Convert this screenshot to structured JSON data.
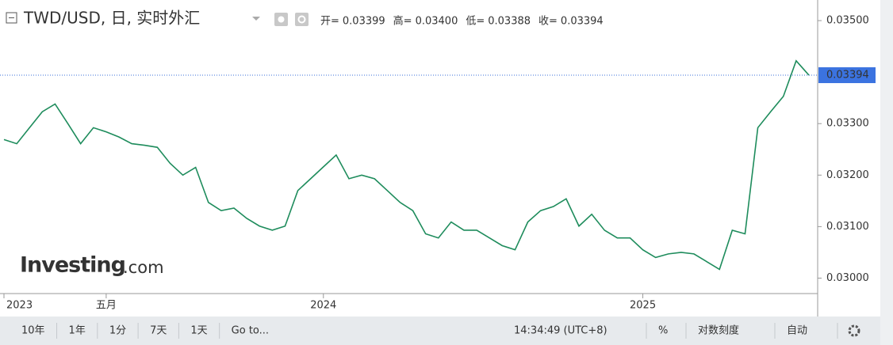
{
  "chart_data": {
    "type": "line",
    "title": "TWD/USD, 日, 实时外汇",
    "ohlc": [
      {
        "label": "开=",
        "value": "0.03399"
      },
      {
        "label": "高=",
        "value": "0.03400"
      },
      {
        "label": "低=",
        "value": "0.03388"
      },
      {
        "label": "收=",
        "value": "0.03394"
      }
    ],
    "logo": "Investing",
    "logo_suffix": ".com",
    "categories": [
      "2023",
      null,
      null,
      null,
      null,
      null,
      null,
      null,
      "五月",
      null,
      null,
      null,
      null,
      null,
      null,
      null,
      null,
      null,
      null,
      null,
      null,
      null,
      null,
      null,
      null,
      "2024",
      null,
      null,
      null,
      null,
      null,
      null,
      null,
      null,
      null,
      null,
      null,
      null,
      null,
      null,
      null,
      null,
      null,
      null,
      null,
      null,
      null,
      null,
      null,
      null,
      "2025",
      null,
      null,
      null,
      null,
      null,
      null,
      null,
      null,
      null,
      null,
      null,
      null,
      null
    ],
    "series": [
      {
        "name": "TWD/USD",
        "color": "#1e8c5c",
        "values": [
          0.03269,
          0.03261,
          0.03292,
          0.03323,
          0.03338,
          0.033,
          0.03261,
          0.03292,
          0.03284,
          0.03274,
          0.03261,
          0.03258,
          0.03254,
          0.03223,
          0.032,
          0.03215,
          0.03147,
          0.03131,
          0.03136,
          0.03116,
          0.03101,
          0.03093,
          0.03101,
          0.0317,
          0.03193,
          0.03216,
          0.03239,
          0.03193,
          0.032,
          0.03193,
          0.0317,
          0.03147,
          0.03131,
          0.03086,
          0.03078,
          0.03109,
          0.03093,
          0.03093,
          0.03078,
          0.03063,
          0.03055,
          0.03109,
          0.03131,
          0.03139,
          0.03154,
          0.03101,
          0.03124,
          0.03093,
          0.03078,
          0.03078,
          0.03055,
          0.0304,
          0.03047,
          0.0305,
          0.03047,
          0.03032,
          0.03017,
          0.03093,
          0.03086,
          0.03292,
          0.03323,
          0.03353,
          0.03422,
          0.03394
        ]
      }
    ],
    "last_price": 0.03394,
    "ylim": [
      0.0297,
      0.0354
    ],
    "yticks": [
      {
        "value": 0.03,
        "label": "0.03000"
      },
      {
        "value": 0.031,
        "label": "0.03100"
      },
      {
        "value": 0.032,
        "label": "0.03200"
      },
      {
        "value": 0.033,
        "label": "0.03300"
      },
      {
        "value": 0.035,
        "label": "0.03500"
      }
    ],
    "toolbar_left": [
      "10年",
      "1年",
      "1分",
      "7天",
      "1天",
      "Go to..."
    ],
    "time": "14:34:49 (UTC+8)",
    "toolbar_right": [
      "%",
      "对数刻度",
      "自动"
    ]
  }
}
